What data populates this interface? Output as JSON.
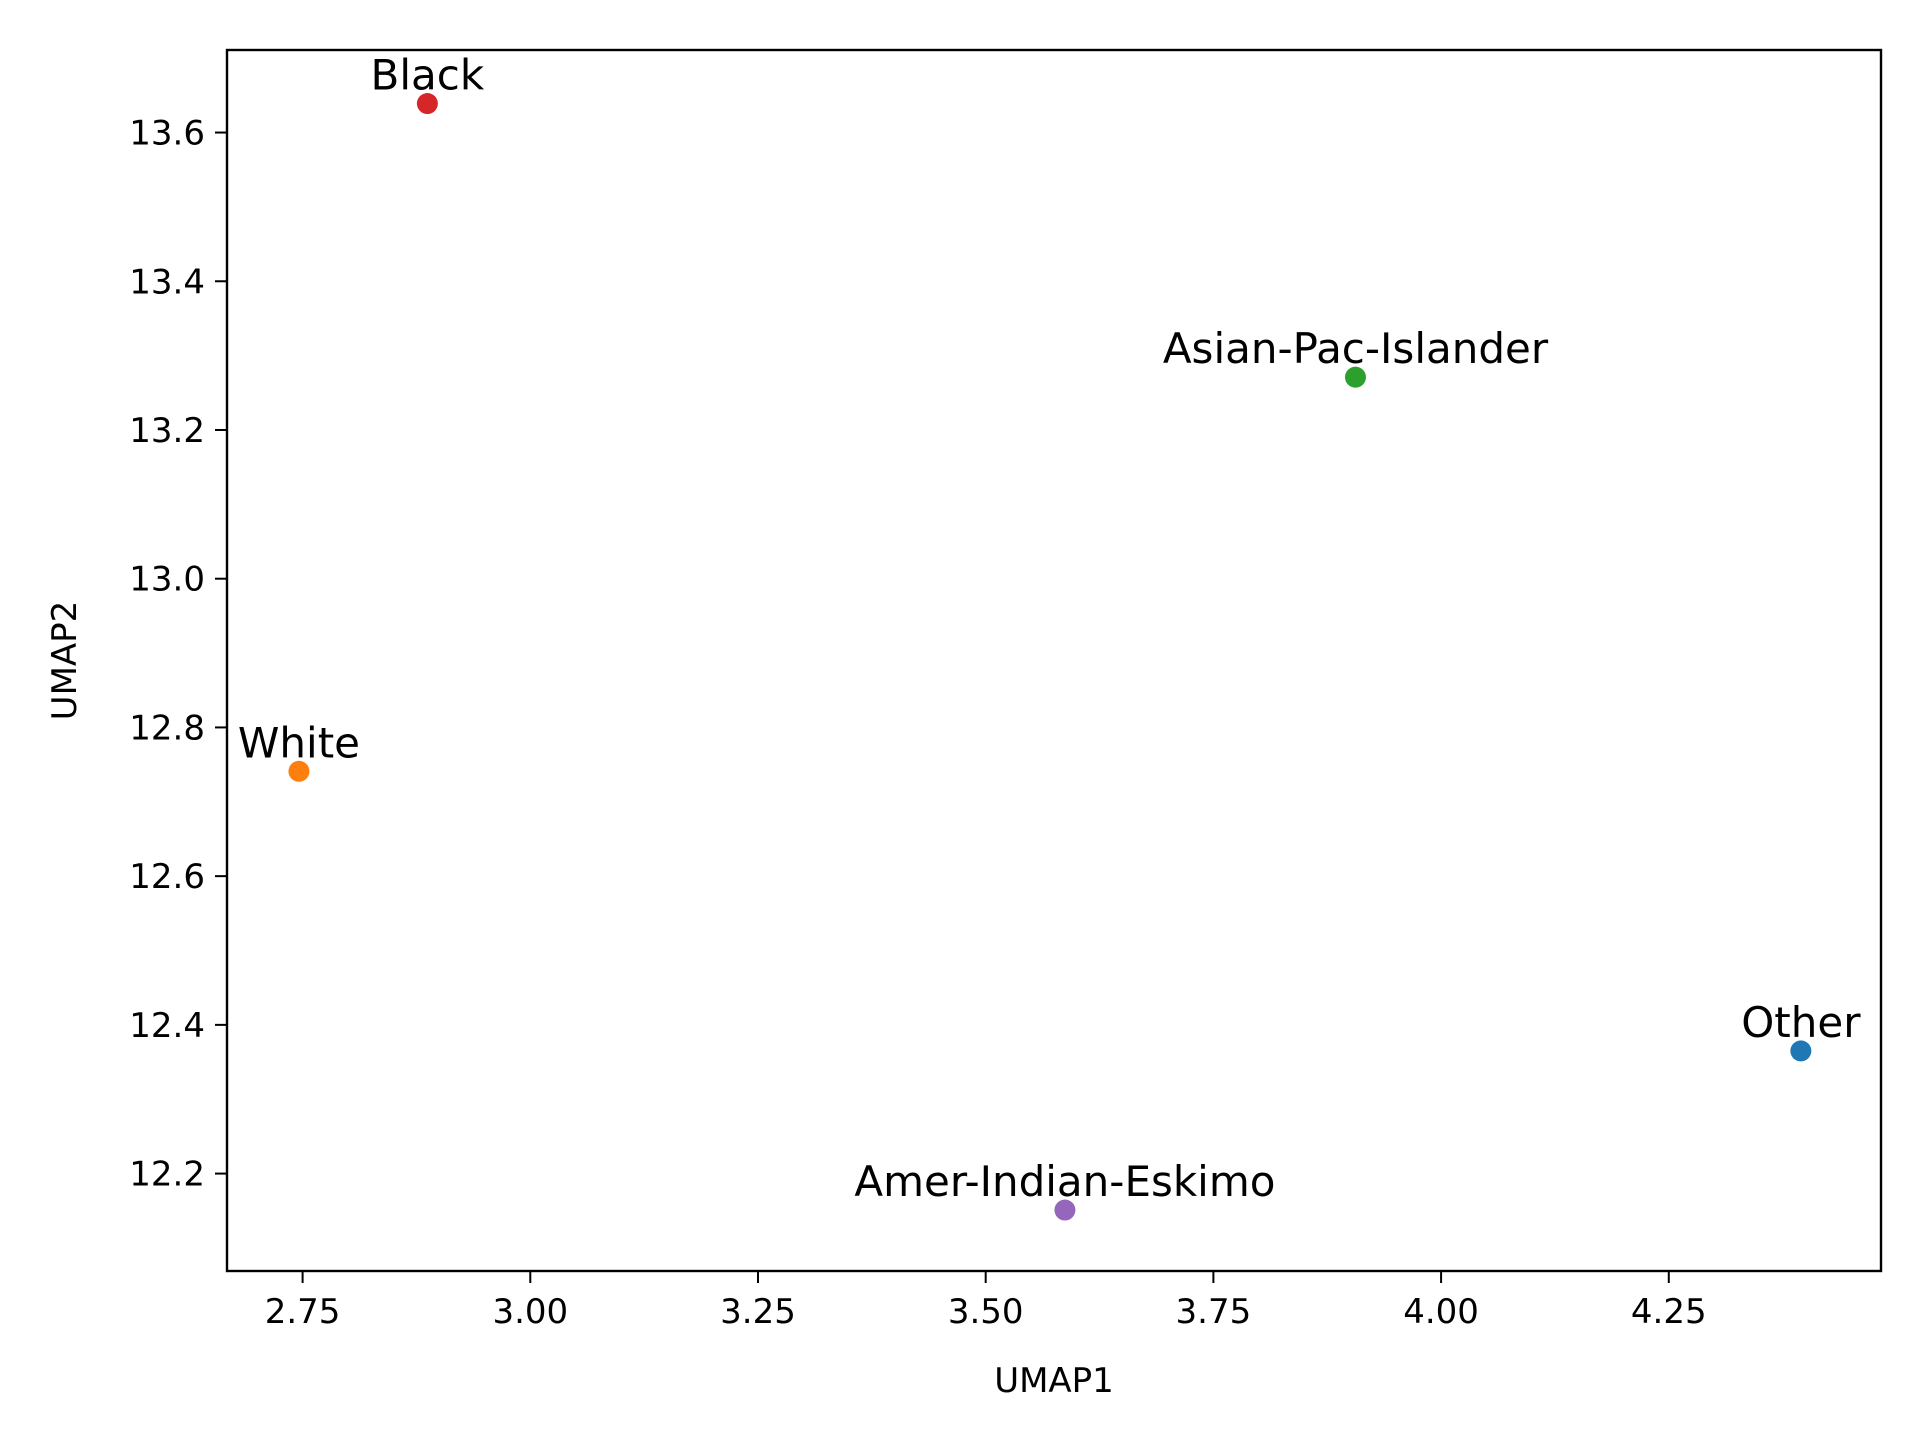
{
  "chart_data": {
    "type": "scatter",
    "title": "",
    "xlabel": "UMAP1",
    "ylabel": "UMAP2",
    "xlim": [
      2.667,
      4.483
    ],
    "ylim": [
      12.069,
      13.711
    ],
    "xticks": [
      "2.75",
      "3.00",
      "3.25",
      "3.50",
      "3.75",
      "4.00",
      "4.25"
    ],
    "xtick_values": [
      2.75,
      3.0,
      3.25,
      3.5,
      3.75,
      4.0,
      4.25
    ],
    "yticks": [
      "12.2",
      "12.4",
      "12.6",
      "12.8",
      "13.0",
      "13.2",
      "13.4",
      "13.6"
    ],
    "ytick_values": [
      12.2,
      12.4,
      12.6,
      12.8,
      13.0,
      13.2,
      13.4,
      13.6
    ],
    "grid": false,
    "points": [
      {
        "label": "Other",
        "x": 4.395,
        "y": 12.365,
        "color": "#1f77b4"
      },
      {
        "label": "White",
        "x": 2.746,
        "y": 12.741,
        "color": "#ff7f0e"
      },
      {
        "label": "Asian-Pac-Islander",
        "x": 3.906,
        "y": 13.271,
        "color": "#2ca02c"
      },
      {
        "label": "Black",
        "x": 2.887,
        "y": 13.639,
        "color": "#d62728"
      },
      {
        "label": "Amer-Indian-Eskimo",
        "x": 3.587,
        "y": 12.151,
        "color": "#9467bd"
      }
    ]
  }
}
